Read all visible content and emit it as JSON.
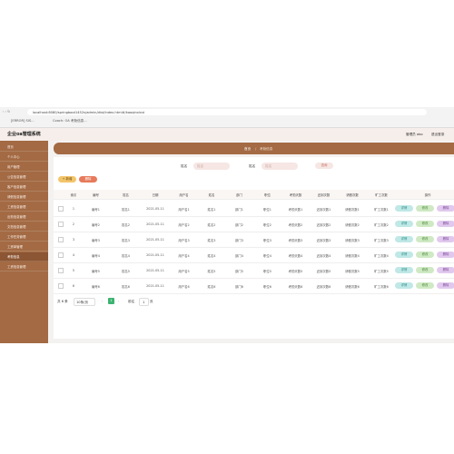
{
  "browser": {
    "url": "localhost:8080/springboot1452s/admin/dist/index.html#/kaoqinxinxi",
    "tabs": [
      "[ERROR] SIS...",
      "Coach: OA 考勤信息..."
    ]
  },
  "header": {
    "title": "企业oa管理系统",
    "user": "管理员 abo",
    "logout": "退出登录"
  },
  "sidebar": [
    "首页",
    "个人中心",
    "用户管理",
    "公告信息管理",
    "客户信息管理",
    "请假信息管理",
    "工资信息管理",
    "出勤信息管理",
    "文档信息管理",
    "工作任务管理",
    "工资单管理",
    "考勤信息",
    "工资信息管理"
  ],
  "active_menu": 11,
  "breadcrumb": [
    "首页",
    "考勤信息"
  ],
  "search": {
    "fields": [
      "姓名",
      "姓名"
    ],
    "placeholder": "姓名",
    "button": "查询"
  },
  "actions": [
    "+ 新增",
    "删除"
  ],
  "table": {
    "columns": [
      "索引",
      "编号",
      "姓名",
      "日期",
      "用户名",
      "姓名",
      "部门",
      "职位",
      "考勤天数",
      "迟到次数",
      "请假次数",
      "旷工次数",
      "操作"
    ],
    "rows": [
      [
        "1",
        "编号1",
        "姓名1",
        "2021-05-11",
        "用户名1",
        "姓名1",
        "部门1",
        "职位1",
        "考勤天数1",
        "迟到次数1",
        "请假次数1",
        "旷工次数1"
      ],
      [
        "2",
        "编号2",
        "姓名2",
        "2021-05-11",
        "用户名2",
        "姓名2",
        "部门2",
        "职位2",
        "考勤天数2",
        "迟到次数2",
        "请假次数2",
        "旷工次数2"
      ],
      [
        "3",
        "编号3",
        "姓名3",
        "2021-05-11",
        "用户名3",
        "姓名3",
        "部门3",
        "职位3",
        "考勤天数3",
        "迟到次数3",
        "请假次数3",
        "旷工次数3"
      ],
      [
        "4",
        "编号4",
        "姓名4",
        "2021-05-11",
        "用户名4",
        "姓名4",
        "部门4",
        "职位4",
        "考勤天数4",
        "迟到次数4",
        "请假次数4",
        "旷工次数4"
      ],
      [
        "5",
        "编号5",
        "姓名5",
        "2021-05-11",
        "用户名5",
        "姓名5",
        "部门5",
        "职位5",
        "考勤天数5",
        "迟到次数5",
        "请假次数5",
        "旷工次数5"
      ],
      [
        "6",
        "编号6",
        "姓名6",
        "2021-05-11",
        "用户名6",
        "姓名6",
        "部门6",
        "职位6",
        "考勤天数6",
        "迟到次数6",
        "请假次数6",
        "旷工次数6"
      ]
    ],
    "row_actions": [
      "详情",
      "修改",
      "删除"
    ]
  },
  "pagination": {
    "total": "共 6 条",
    "page_size": "10条/页",
    "page": "1",
    "goto": "前往",
    "goto_value": "1",
    "unit": "页"
  }
}
